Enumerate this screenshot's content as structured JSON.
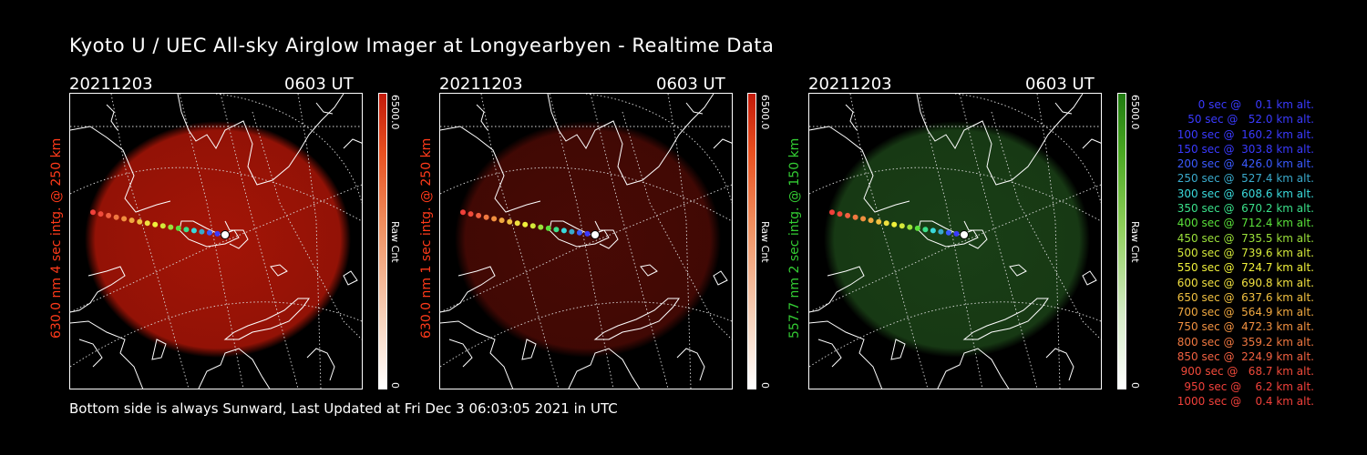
{
  "title": "Kyoto U / UEC All-sky Airglow Imager at Longyearbyen - Realtime Data",
  "footer": "Bottom side is always Sunward, Last Updated at Fri Dec  3 06:03:05 2021 in UTC",
  "panels": [
    {
      "date": "20211203",
      "time": "0603 UT",
      "ylabel": "630.0 nm 4 sec intg. @ 250 km",
      "label_color": "#ff3a1a",
      "cbar_max": "6500.0",
      "cbar_min": "0",
      "cbar_label": "Raw Cnt",
      "glow": "#c01808",
      "glow_opacity": 0.85
    },
    {
      "date": "20211203",
      "time": "0603 UT",
      "ylabel": "630.0 nm 1 sec intg. @ 250 km",
      "label_color": "#ff3a1a",
      "cbar_max": "6500.0",
      "cbar_min": "0",
      "cbar_label": "Raw Cnt",
      "glow": "#5a0c06",
      "glow_opacity": 0.8
    },
    {
      "date": "20211203",
      "time": "0603 UT",
      "ylabel": "557.7 nm 2 sec intg. @ 150 km",
      "label_color": "#33cc33",
      "cbar_max": "6500.0",
      "cbar_min": "0",
      "cbar_label": "Raw Cnt",
      "glow": "#1e4a1a",
      "glow_opacity": 0.85
    }
  ],
  "legend": [
    {
      "text": "   0 sec @    0.1 km alt.",
      "color": "#3a3aff"
    },
    {
      "text": "  50 sec @   52.0 km alt.",
      "color": "#3a3aff"
    },
    {
      "text": " 100 sec @  160.2 km alt.",
      "color": "#3a3aff"
    },
    {
      "text": " 150 sec @  303.8 km alt.",
      "color": "#3a3aff"
    },
    {
      "text": " 200 sec @  426.0 km alt.",
      "color": "#3a5aff"
    },
    {
      "text": " 250 sec @  527.4 km alt.",
      "color": "#3aaacc"
    },
    {
      "text": " 300 sec @  608.6 km alt.",
      "color": "#3adadc"
    },
    {
      "text": " 350 sec @  670.2 km alt.",
      "color": "#3ae08a"
    },
    {
      "text": " 400 sec @  712.4 km alt.",
      "color": "#5ae03a"
    },
    {
      "text": " 450 sec @  735.5 km alt.",
      "color": "#9ae03a"
    },
    {
      "text": " 500 sec @  739.6 km alt.",
      "color": "#d4e83a"
    },
    {
      "text": " 550 sec @  724.7 km alt.",
      "color": "#f0f03a"
    },
    {
      "text": " 600 sec @  690.8 km alt.",
      "color": "#f0e040"
    },
    {
      "text": " 650 sec @  637.6 km alt.",
      "color": "#f0c040"
    },
    {
      "text": " 700 sec @  564.9 km alt.",
      "color": "#f0a840"
    },
    {
      "text": " 750 sec @  472.3 km alt.",
      "color": "#f09040"
    },
    {
      "text": " 800 sec @  359.2 km alt.",
      "color": "#f07840"
    },
    {
      "text": " 850 sec @  224.9 km alt.",
      "color": "#f06040"
    },
    {
      "text": " 900 sec @   68.7 km alt.",
      "color": "#f04a3a"
    },
    {
      "text": " 950 sec @    6.2 km alt.",
      "color": "#f0403a"
    },
    {
      "text": "1000 sec @    0.4 km alt.",
      "color": "#f0403a"
    }
  ],
  "track_colors": [
    "#ffffff",
    "#3a3aff",
    "#3a5aff",
    "#3aaacc",
    "#3adadc",
    "#3ae08a",
    "#5ae03a",
    "#9ae03a",
    "#d4e83a",
    "#f0f03a",
    "#f0e040",
    "#f0c040",
    "#f0a840",
    "#f09040",
    "#f07840",
    "#f06040",
    "#f04a3a",
    "#f0403a"
  ]
}
